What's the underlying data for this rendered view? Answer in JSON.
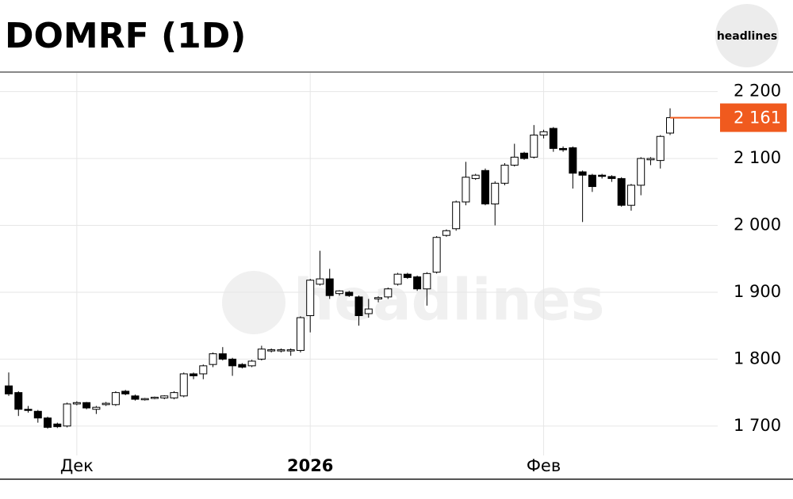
{
  "chart_data": {
    "type": "candlestick",
    "title": "DOMRF (1D)",
    "brand": "headlines",
    "watermark": "headlines",
    "categories": [
      null,
      null,
      null,
      null,
      null,
      null,
      null,
      "Дек",
      null,
      null,
      null,
      null,
      null,
      null,
      null,
      null,
      null,
      null,
      null,
      null,
      null,
      null,
      null,
      null,
      null,
      null,
      null,
      null,
      null,
      null,
      null,
      "2026",
      null,
      null,
      null,
      null,
      null,
      null,
      null,
      null,
      null,
      null,
      null,
      null,
      null,
      null,
      null,
      null,
      null,
      null,
      null,
      null,
      null,
      null,
      null,
      "Фев",
      null,
      null,
      null,
      null,
      null,
      null,
      null,
      null,
      null,
      null,
      null,
      null,
      null
    ],
    "open": [
      1760,
      1750,
      1725,
      1722,
      1712,
      1703,
      1700,
      1733,
      1735,
      1725,
      1732,
      1732,
      1752,
      1745,
      1740,
      1742,
      1742,
      1742,
      1745,
      1778,
      1778,
      1792,
      1808,
      1800,
      1792,
      1790,
      1800,
      1813,
      1813,
      1813,
      1813,
      1865,
      1912,
      1920,
      1898,
      1900,
      1893,
      1868,
      1890,
      1893,
      1912,
      1927,
      1923,
      1905,
      1930,
      1985,
      1995,
      2035,
      2070,
      2082,
      2032,
      2063,
      2090,
      2108,
      2102,
      2135,
      2145,
      2115,
      2116,
      2080,
      2075,
      2075,
      2073,
      2070,
      2030,
      2060,
      2098,
      2097,
      2138
    ],
    "high": [
      1780,
      1752,
      1730,
      1724,
      1714,
      1705,
      1735,
      1737,
      1736,
      1730,
      1736,
      1752,
      1754,
      1747,
      1742,
      1744,
      1746,
      1752,
      1780,
      1780,
      1792,
      1810,
      1818,
      1802,
      1794,
      1799,
      1820,
      1816,
      1816,
      1816,
      1864,
      1920,
      1962,
      1935,
      1903,
      1902,
      1895,
      1890,
      1894,
      1907,
      1929,
      1929,
      1925,
      1930,
      1984,
      1994,
      2037,
      2095,
      2077,
      2085,
      2066,
      2093,
      2122,
      2110,
      2150,
      2143,
      2147,
      2118,
      2118,
      2082,
      2077,
      2077,
      2075,
      2072,
      2062,
      2102,
      2102,
      2135,
      2175
    ],
    "low": [
      1745,
      1715,
      1720,
      1705,
      1696,
      1697,
      1698,
      1731,
      1725,
      1718,
      1730,
      1730,
      1746,
      1738,
      1738,
      1740,
      1740,
      1740,
      1743,
      1770,
      1770,
      1788,
      1798,
      1775,
      1786,
      1788,
      1798,
      1810,
      1810,
      1805,
      1810,
      1840,
      1910,
      1890,
      1895,
      1893,
      1850,
      1862,
      1885,
      1890,
      1910,
      1920,
      1902,
      1880,
      1928,
      1983,
      1992,
      2030,
      2068,
      2030,
      2000,
      2060,
      2088,
      2098,
      2100,
      2130,
      2110,
      2110,
      2055,
      2005,
      2050,
      2070,
      2065,
      2028,
      2022,
      2045,
      2090,
      2085,
      2135
    ],
    "close": [
      1748,
      1725,
      1724,
      1712,
      1698,
      1699,
      1733,
      1735,
      1727,
      1728,
      1734,
      1750,
      1748,
      1740,
      1741,
      1743,
      1745,
      1750,
      1778,
      1775,
      1790,
      1808,
      1800,
      1790,
      1788,
      1797,
      1815,
      1814,
      1814,
      1814,
      1862,
      1918,
      1920,
      1895,
      1902,
      1895,
      1865,
      1875,
      1892,
      1905,
      1927,
      1922,
      1905,
      1928,
      1982,
      1992,
      2035,
      2072,
      2075,
      2032,
      2063,
      2090,
      2102,
      2100,
      2135,
      2140,
      2115,
      2113,
      2078,
      2075,
      2058,
      2074,
      2070,
      2030,
      2060,
      2100,
      2100,
      2133,
      2161
    ],
    "last_price": {
      "value": 2161,
      "label": "2 161"
    },
    "ylim": [
      1656,
      2228
    ],
    "yticks": [
      {
        "value": 1700,
        "label": "1 700"
      },
      {
        "value": 1800,
        "label": "1 800"
      },
      {
        "value": 1900,
        "label": "1 900"
      },
      {
        "value": 2000,
        "label": "2 000"
      },
      {
        "value": 2100,
        "label": "2 100"
      },
      {
        "value": 2200,
        "label": "2 200"
      }
    ],
    "grid": true,
    "up_color": "#ffffff",
    "down_color": "#000000",
    "last_color": "#f05a1e"
  }
}
